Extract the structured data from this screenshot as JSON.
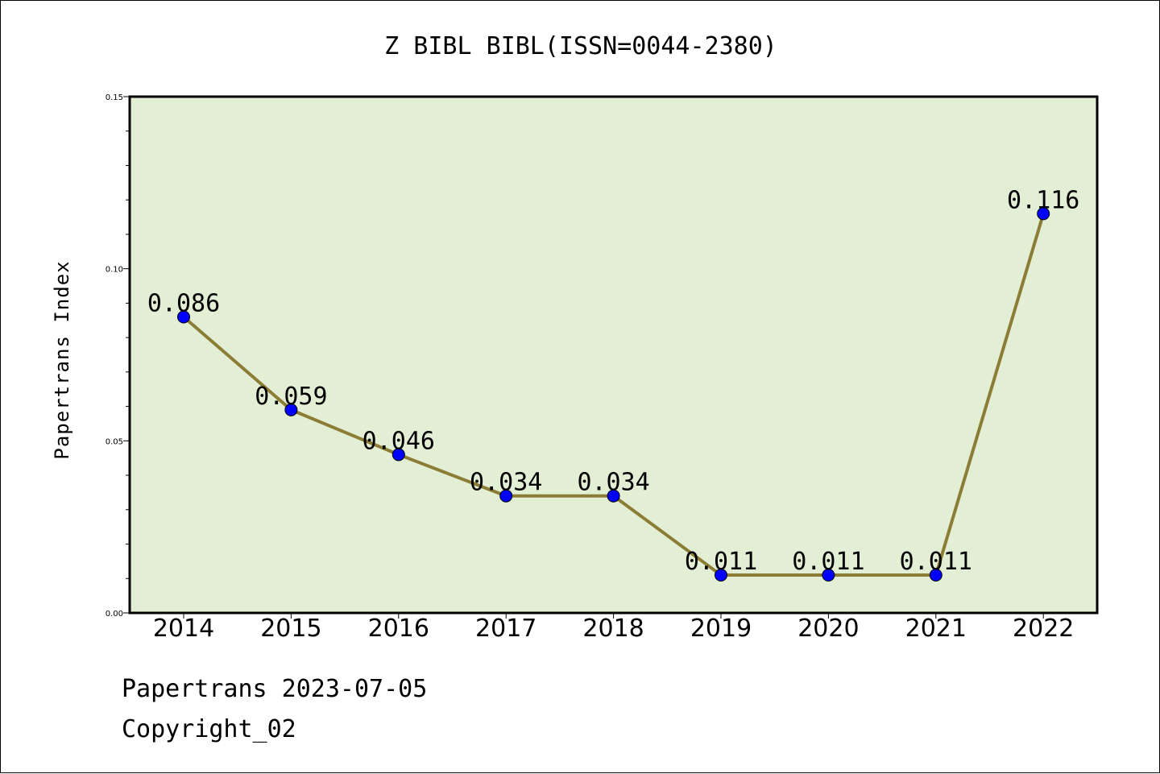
{
  "chart_data": {
    "type": "line",
    "title": "Z BIBL BIBL(ISSN=0044-2380)",
    "ylabel": "Papertrans Index",
    "xlabel": "",
    "categories": [
      "2014",
      "2015",
      "2016",
      "2017",
      "2018",
      "2019",
      "2020",
      "2021",
      "2022"
    ],
    "values": [
      0.086,
      0.059,
      0.046,
      0.034,
      0.034,
      0.011,
      0.011,
      0.011,
      0.116
    ],
    "data_labels": [
      "0.086",
      "0.059",
      "0.046",
      "0.034",
      "0.034",
      "0.011",
      "0.011",
      "0.011",
      "0.116"
    ],
    "ylim": [
      0,
      0.15
    ],
    "yticks": [
      0.0,
      0.05,
      0.1,
      0.15
    ],
    "ytick_labels": [
      "0.00",
      "0.05",
      "0.10",
      "0.15"
    ],
    "grid": false,
    "colors": {
      "plot_background": "#e2efd5",
      "line": "#8b7d35",
      "marker": "#0000ff"
    }
  },
  "footer": {
    "line1": "Papertrans 2023-07-05",
    "line2": "Copyright_02"
  }
}
